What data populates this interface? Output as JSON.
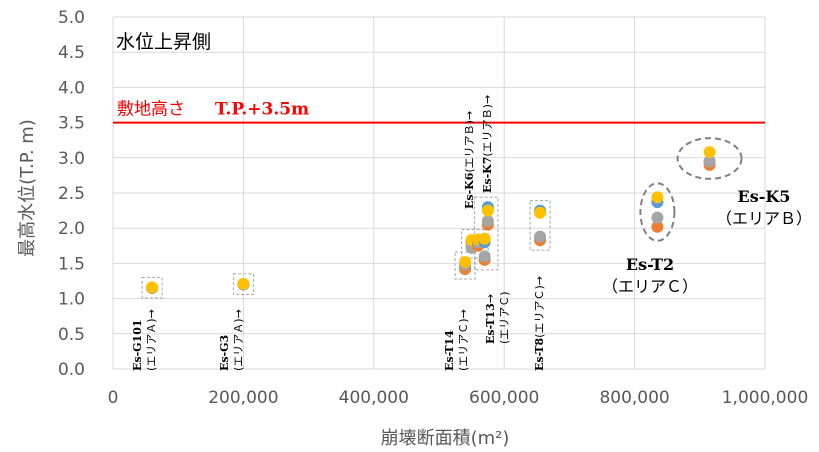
{
  "chart_data": {
    "type": "scatter",
    "panel_label": "水位上昇側",
    "xlabel": "崩壊断面積(m²)",
    "ylabel": "最高水位(T.P. m)",
    "xlim": [
      0,
      1000000
    ],
    "ylim": [
      0,
      5
    ],
    "x_ticks": [
      "0",
      "200,000",
      "400,000",
      "600,000",
      "800,000",
      "1,000,000"
    ],
    "y_ticks": [
      "0.0",
      "0.5",
      "1.0",
      "1.5",
      "2.0",
      "2.5",
      "3.0",
      "3.5",
      "4.0",
      "4.5",
      "5.0"
    ],
    "grid": true,
    "reference_line": {
      "y": 3.5,
      "label_prefix": "敷地高さ",
      "label_value": "T.P.+3.5m",
      "color": "#ff0000"
    },
    "series_colors": [
      "#5b9bd5",
      "#ed7d31",
      "#a5a5a5",
      "#ffc000"
    ],
    "groups": [
      {
        "x": 60000,
        "points": [
          [
            60000,
            1.15
          ],
          [
            60000,
            1.15
          ],
          [
            60000,
            1.15
          ],
          [
            60000,
            1.16
          ]
        ]
      },
      {
        "x": 200000,
        "points": [
          [
            200000,
            1.2
          ],
          [
            200000,
            1.2
          ],
          [
            200000,
            1.2
          ],
          [
            200000,
            1.21
          ]
        ]
      },
      {
        "x": 540000,
        "points": [
          [
            540000,
            1.46
          ],
          [
            540000,
            1.42
          ],
          [
            540000,
            1.48
          ],
          [
            540000,
            1.52
          ]
        ]
      },
      {
        "x": 550000,
        "points": [
          [
            550000,
            1.75
          ],
          [
            550000,
            1.8
          ],
          [
            550000,
            1.72
          ],
          [
            550000,
            1.83
          ]
        ]
      },
      {
        "x": 560000,
        "points": [
          [
            560000,
            1.78
          ],
          [
            560000,
            1.75
          ],
          [
            560000,
            1.8
          ],
          [
            560000,
            1.84
          ]
        ]
      },
      {
        "x": 570000,
        "points": [
          [
            570000,
            1.8
          ],
          [
            570000,
            1.55
          ],
          [
            570000,
            1.6
          ],
          [
            570000,
            1.85
          ]
        ]
      },
      {
        "x": 575000,
        "points": [
          [
            575000,
            2.3
          ],
          [
            575000,
            2.05
          ],
          [
            575000,
            2.1
          ],
          [
            575000,
            2.25
          ]
        ]
      },
      {
        "x": 655000,
        "points": [
          [
            655000,
            2.25
          ],
          [
            655000,
            1.83
          ],
          [
            655000,
            1.88
          ],
          [
            655000,
            2.22
          ]
        ]
      },
      {
        "x": 835000,
        "points": [
          [
            835000,
            2.37
          ],
          [
            835000,
            2.02
          ],
          [
            835000,
            2.15
          ],
          [
            835000,
            2.44
          ]
        ]
      },
      {
        "x": 915000,
        "points": [
          [
            915000,
            2.95
          ],
          [
            915000,
            2.9
          ],
          [
            915000,
            2.95
          ],
          [
            915000,
            3.08
          ]
        ]
      }
    ],
    "annotations": [
      {
        "name": "g101",
        "lines": [
          "Es-G101",
          "(エリアＡ)→"
        ]
      },
      {
        "name": "g3",
        "lines": [
          "Es-G3",
          "(エリアＡ)→"
        ]
      },
      {
        "name": "t14",
        "lines": [
          "Es-T14",
          "(エリアＣ)→"
        ]
      },
      {
        "name": "t13",
        "lines": [
          "Es-T13→",
          "(エリアＣ)"
        ]
      },
      {
        "name": "k6",
        "lines": [
          "Es-K6(エリアＢ)→"
        ]
      },
      {
        "name": "k7",
        "lines": [
          "Es-K7(エリアＢ)→"
        ]
      },
      {
        "name": "t8",
        "lines": [
          "Es-T8(エリアＣ)→"
        ]
      },
      {
        "name": "t2",
        "lines": [
          "Es-T2",
          "（エリアＣ）"
        ]
      },
      {
        "name": "k5",
        "lines": [
          "Es-K5",
          "（エリアＢ）"
        ]
      }
    ]
  }
}
